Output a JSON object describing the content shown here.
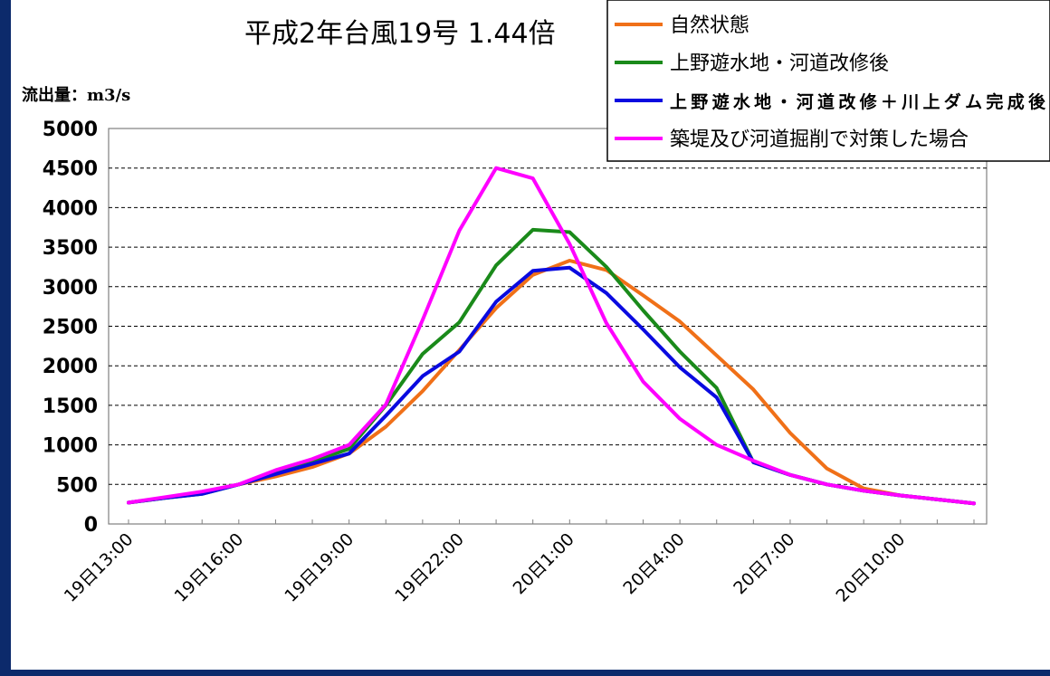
{
  "chart_data": {
    "type": "line",
    "title": "平成2年台風19号 1.44倍",
    "ylabel": "流出量：m3/s",
    "xlabel": "",
    "ylim": [
      0,
      5000
    ],
    "yticks": [
      0,
      500,
      1000,
      1500,
      2000,
      2500,
      3000,
      3500,
      4000,
      4500,
      5000
    ],
    "grid": "horizontal-dashed",
    "legend_position": "top-right",
    "x": [
      "19日13:00",
      "19日14:00",
      "19日15:00",
      "19日16:00",
      "19日17:00",
      "19日18:00",
      "19日19:00",
      "19日20:00",
      "19日21:00",
      "19日22:00",
      "19日23:00",
      "20日0:00",
      "20日1:00",
      "20日2:00",
      "20日3:00",
      "20日4:00",
      "20日5:00",
      "20日6:00",
      "20日7:00",
      "20日8:00",
      "20日9:00",
      "20日10:00",
      "20日11:00",
      "20日12:00"
    ],
    "x_tick_labels": [
      "19日13:00",
      "19日16:00",
      "19日19:00",
      "19日22:00",
      "20日1:00",
      "20日4:00",
      "20日7:00",
      "20日10:00"
    ],
    "x_tick_indices": [
      0,
      3,
      6,
      9,
      12,
      15,
      18,
      21
    ],
    "series": [
      {
        "name": "自然状態",
        "color": "#f07018",
        "values": [
          270,
          330,
          400,
          500,
          600,
          720,
          890,
          1230,
          1680,
          2200,
          2730,
          3150,
          3330,
          3210,
          2890,
          2560,
          2130,
          1700,
          1150,
          700,
          450,
          360,
          310,
          260
        ]
      },
      {
        "name": "上野遊水地・河道改修後",
        "color": "#1a8a1a",
        "values": [
          270,
          330,
          380,
          500,
          640,
          790,
          950,
          1500,
          2150,
          2550,
          3270,
          3720,
          3690,
          3250,
          2700,
          2180,
          1720,
          780,
          620,
          500,
          420,
          360,
          310,
          260
        ]
      },
      {
        "name": "上野遊水地・河道改修＋川上ダム完成後",
        "color": "#0a0ae0",
        "values": [
          270,
          330,
          380,
          500,
          630,
          760,
          890,
          1370,
          1870,
          2180,
          2810,
          3200,
          3240,
          2920,
          2460,
          1980,
          1600,
          780,
          620,
          500,
          420,
          360,
          310,
          260
        ]
      },
      {
        "name": "築堤及び河道掘削で対策した場合",
        "color": "#ff00ff",
        "values": [
          270,
          340,
          410,
          500,
          680,
          820,
          1000,
          1510,
          2580,
          3710,
          4500,
          4370,
          3540,
          2540,
          1800,
          1330,
          1000,
          800,
          620,
          500,
          420,
          360,
          310,
          260
        ]
      }
    ]
  }
}
